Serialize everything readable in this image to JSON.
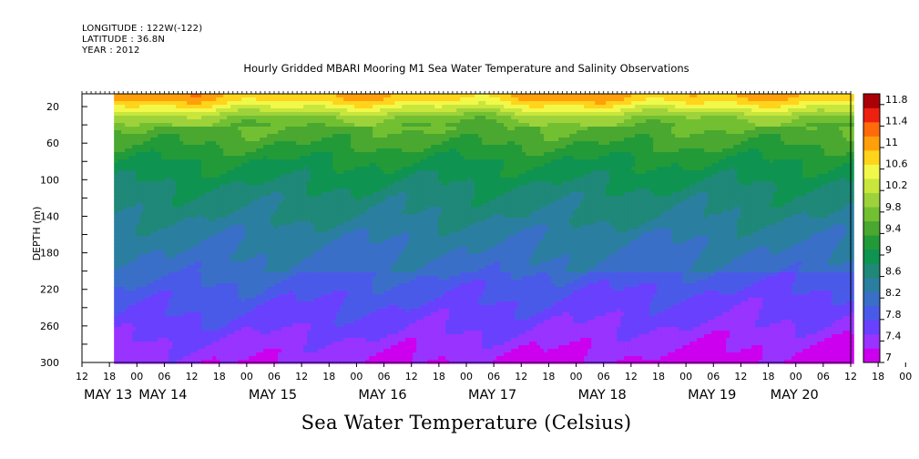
{
  "header": {
    "longitude": "LONGITUDE : 122W(-122)",
    "latitude": "LATITUDE : 36.8N",
    "year": "YEAR : 2012"
  },
  "chart_data": {
    "type": "heatmap",
    "title": "Hourly Gridded MBARI Mooring M1 Sea Water Temperature and Salinity Observations",
    "xlabel": "Sea Water Temperature (Celsius)",
    "ylabel": "DEPTH (m)",
    "y_ticks": [
      20,
      60,
      100,
      140,
      180,
      220,
      260,
      300
    ],
    "y_range": [
      300,
      6
    ],
    "y_inverted": true,
    "hour_ticks": [
      "12",
      "18",
      "00",
      "06",
      "12",
      "18",
      "00",
      "06",
      "12",
      "18",
      "00",
      "06",
      "12",
      "18",
      "00",
      "06",
      "12",
      "18",
      "00",
      "06",
      "12",
      "18",
      "00",
      "06",
      "12",
      "18",
      "00",
      "06",
      "12",
      "18",
      "00",
      "06",
      "12",
      "18",
      "00",
      "06",
      "12",
      "18",
      "00",
      "06",
      "12",
      "18",
      "00",
      "06",
      "12",
      "18",
      "00",
      "06",
      "12"
    ],
    "day_labels": [
      "MAY 13",
      "MAY 14",
      "MAY 15",
      "MAY 16",
      "MAY 17",
      "MAY 18",
      "MAY 19",
      "MAY 20"
    ],
    "day_label_hours": [
      12,
      24,
      48,
      72,
      96,
      120,
      144,
      162
    ],
    "x_range_hours": [
      12,
      180
    ],
    "data_start_hour": 19,
    "colorbar_ticks": [
      "11.8",
      "11.4",
      "11",
      "10.6",
      "10.2",
      "9.8",
      "9.4",
      "9",
      "8.6",
      "8.2",
      "7.8",
      "7.4",
      "7"
    ],
    "colorbar_range": [
      7,
      12
    ],
    "colorbar_colors": [
      "#cc00ee",
      "#9933ff",
      "#6a40ff",
      "#4a5ae8",
      "#3a6fc8",
      "#2a7fa0",
      "#1f8878",
      "#0e9450",
      "#229a38",
      "#4aa830",
      "#72c032",
      "#9ed23a",
      "#c8e63c",
      "#f2f84a",
      "#ffd41a",
      "#ffa00a",
      "#ff6a0a",
      "#ee2010",
      "#aa0008"
    ],
    "depth_profile": [
      {
        "depth": 6,
        "temp": 11.0
      },
      {
        "depth": 14,
        "temp": 10.8
      },
      {
        "depth": 22,
        "temp": 10.4
      },
      {
        "depth": 32,
        "temp": 9.9
      },
      {
        "depth": 45,
        "temp": 9.6
      },
      {
        "depth": 60,
        "temp": 9.4
      },
      {
        "depth": 80,
        "temp": 9.1
      },
      {
        "depth": 100,
        "temp": 8.9
      },
      {
        "depth": 120,
        "temp": 8.7
      },
      {
        "depth": 140,
        "temp": 8.6
      },
      {
        "depth": 160,
        "temp": 8.4
      },
      {
        "depth": 180,
        "temp": 8.3
      },
      {
        "depth": 200,
        "temp": 8.2
      },
      {
        "depth": 220,
        "temp": 8.0
      },
      {
        "depth": 240,
        "temp": 7.85
      },
      {
        "depth": 260,
        "temp": 7.7
      },
      {
        "depth": 280,
        "temp": 7.5
      },
      {
        "depth": 300,
        "temp": 7.35
      }
    ]
  }
}
